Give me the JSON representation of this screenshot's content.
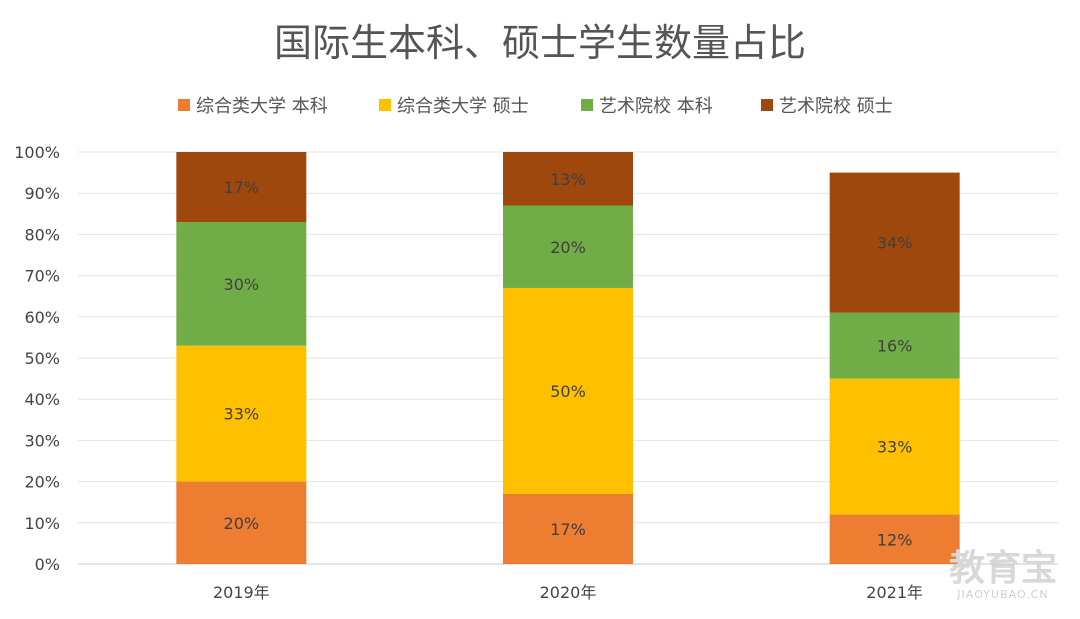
{
  "chart_data": {
    "type": "bar",
    "stacked": true,
    "title": "国际生本科、硕士学生数量占比",
    "categories": [
      "2019年",
      "2020年",
      "2021年"
    ],
    "series": [
      {
        "name": "综合类大学 本科",
        "color": "#ED7D31",
        "values": [
          20,
          17,
          12
        ],
        "labels": [
          "20%",
          "17%",
          "12%"
        ]
      },
      {
        "name": "综合类大学 硕士",
        "color": "#FFC000",
        "values": [
          33,
          50,
          33
        ],
        "labels": [
          "33%",
          "50%",
          "33%"
        ]
      },
      {
        "name": "艺术院校 本科",
        "color": "#70AD47",
        "values": [
          30,
          20,
          16
        ],
        "labels": [
          "30%",
          "20%",
          "16%"
        ]
      },
      {
        "name": "艺术院校 硕士",
        "color": "#9E480E",
        "values": [
          17,
          13,
          34
        ],
        "labels": [
          "17%",
          "13%",
          "34%"
        ]
      }
    ],
    "ylim": [
      0,
      100
    ],
    "yticks": [
      "0%",
      "10%",
      "20%",
      "30%",
      "40%",
      "50%",
      "60%",
      "70%",
      "80%",
      "90%",
      "100%"
    ],
    "grid": true,
    "legend_position": "top"
  },
  "watermark": {
    "main": "教育宝",
    "sub": "JIAOYUBAO.CN"
  }
}
